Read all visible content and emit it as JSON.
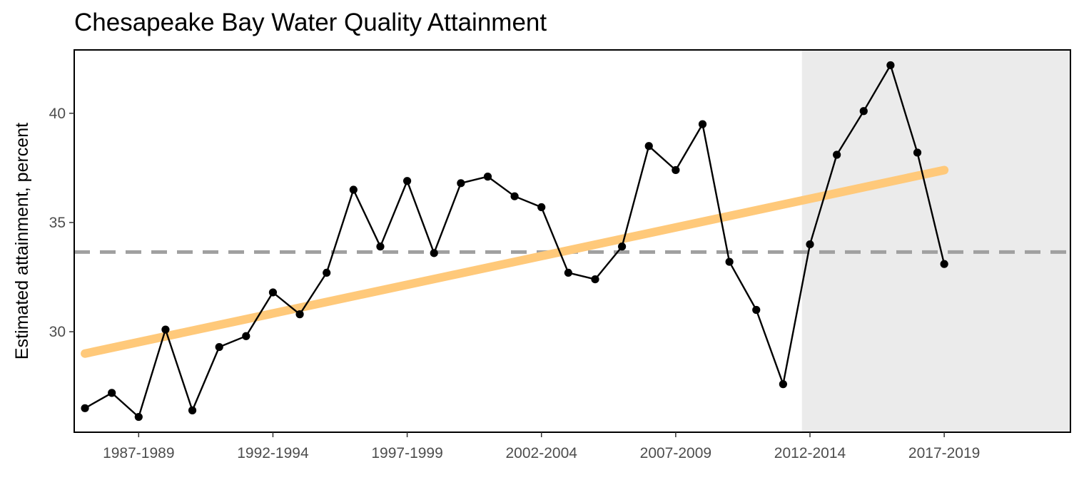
{
  "chart_data": {
    "type": "line",
    "title": "Chesapeake Bay Water Quality Attainment",
    "xlabel": "",
    "ylabel": "Estimated attainment, percent",
    "x_tick_labels": [
      "1987-1989",
      "1992-1994",
      "1997-1999",
      "2002-2004",
      "2007-2009",
      "2012-2014",
      "2017-2019"
    ],
    "y_ticks": [
      30,
      35,
      40
    ],
    "ylim": [
      25.4,
      42.9
    ],
    "x_index_range": [
      -0.4,
      36.7
    ],
    "grid": false,
    "legend": "none",
    "shaded_region": {
      "from_index": 26.7,
      "to_index": 36.7,
      "color": "#ebebeb"
    },
    "series": [
      {
        "color": "#000000",
        "x": [
          "1985-1987",
          "1986-1988",
          "1987-1989",
          "1988-1990",
          "1989-1991",
          "1990-1992",
          "1991-1993",
          "1992-1994",
          "1993-1995",
          "1994-1996",
          "1995-1997",
          "1996-1998",
          "1997-1999",
          "1998-2000",
          "1999-2001",
          "2000-2002",
          "2001-2003",
          "2002-2004",
          "2003-2005",
          "2004-2006",
          "2005-2007",
          "2006-2008",
          "2007-2009",
          "2008-2010",
          "2009-2011",
          "2010-2012",
          "2011-2013",
          "2012-2014",
          "2013-2015",
          "2014-2016",
          "2015-2017",
          "2016-2018",
          "2017-2019"
        ],
        "values": [
          26.5,
          27.2,
          26.1,
          30.1,
          26.4,
          29.3,
          29.8,
          31.8,
          30.8,
          32.7,
          36.5,
          33.9,
          36.9,
          33.6,
          36.8,
          37.1,
          36.2,
          35.7,
          32.7,
          32.4,
          33.9,
          38.5,
          37.4,
          39.5,
          33.2,
          31.0,
          27.6,
          34.0,
          38.1,
          40.1,
          42.2,
          38.2,
          33.1
        ]
      }
    ],
    "trend_line": {
      "color": "#ffc97a",
      "start": {
        "x": "1985-1987",
        "y": 29.0
      },
      "end": {
        "x": "2017-2019",
        "y": 37.4
      }
    },
    "reference_line": {
      "y": 33.65,
      "color": "#a0a0a0",
      "style": "dashed"
    }
  }
}
